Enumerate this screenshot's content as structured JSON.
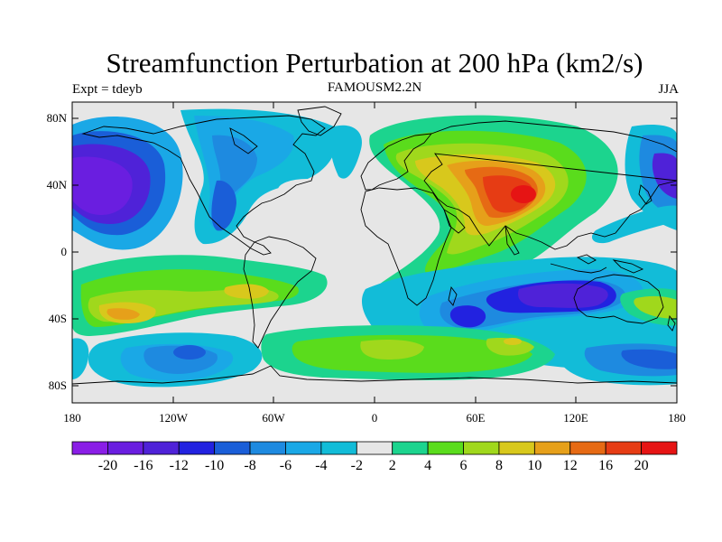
{
  "title": "Streamfunction Perturbation at 200 hPa (km2/s)",
  "left_subtitle": "Expt = tdeyb",
  "center_subtitle": "FAMOUSM2.2N",
  "right_subtitle": "JJA",
  "lat_ticks": [
    "80N",
    "40N",
    "0",
    "40S",
    "80S"
  ],
  "lon_ticks": [
    "180",
    "120W",
    "60W",
    "0",
    "60E",
    "120E",
    "180"
  ],
  "colorbar": {
    "labels": [
      "-20",
      "-16",
      "-12",
      "-10",
      "-8",
      "-6",
      "-4",
      "-2",
      "2",
      "4",
      "6",
      "8",
      "10",
      "12",
      "16",
      "20"
    ],
    "colors": [
      "#8a1ee6",
      "#6a1ee0",
      "#4f22d8",
      "#2222e0",
      "#1a5ed8",
      "#1e8ae0",
      "#1aa8e6",
      "#12bcd8",
      "#e6e6e6",
      "#1cd48e",
      "#5adc1c",
      "#a0d81c",
      "#d8c81c",
      "#e6a01a",
      "#e66a14",
      "#e63c14",
      "#e61414"
    ]
  },
  "map_colors": {
    "neutral": "#e6e6e6",
    "coastline": "#000000"
  }
}
